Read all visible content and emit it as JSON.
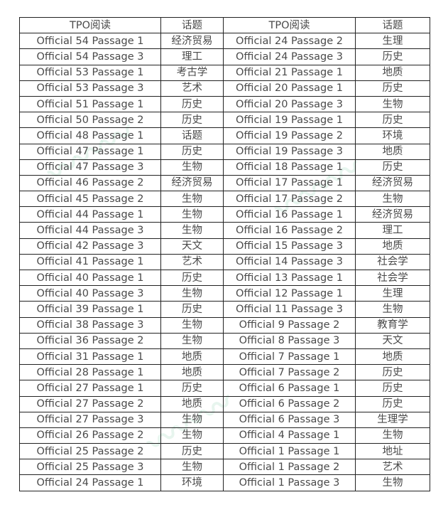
{
  "headers": [
    "TPO阅读",
    "话题",
    "TPO阅读",
    "话题"
  ],
  "rows": [
    [
      "Official 54 Passage 1",
      "经济贸易",
      "Official 24 Passage 2",
      "生理"
    ],
    [
      "Official 54 Passage 3",
      "理工",
      "Official 24 Passage 3",
      "历史"
    ],
    [
      "Official 53 Passage 1",
      "考古学",
      "Official 21 Passage 1",
      "地质"
    ],
    [
      "Official 53 Passage 3",
      "艺术",
      "Official 20 Passage 1",
      "历史"
    ],
    [
      "Official 51 Passage 1",
      "历史",
      "Official 20 Passage 3",
      "生物"
    ],
    [
      "Official 50 Passage 2",
      "历史",
      "Official 19 Passage 1",
      "历史"
    ],
    [
      "Official 48 Passage 1",
      "话题",
      "Official 19 Passage 2",
      "环境"
    ],
    [
      "Official 47 Passage 1",
      "历史",
      "Official 19 Passage 3",
      "地质"
    ],
    [
      "Official 47 Passage 3",
      "生物",
      "Official 18 Passage 1",
      "历史"
    ],
    [
      "Official 46 Passage 2",
      "经济贸易",
      "Official 17 Passage 1",
      "经济贸易"
    ],
    [
      "Official 45 Passage 2",
      "生物",
      "Official 17 Passage 2",
      "生物"
    ],
    [
      "Official 44 Passage 1",
      "生物",
      "Official 16 Passage 1",
      "经济贸易"
    ],
    [
      "Official 44 Passage 3",
      "生物",
      "Official 16 Passage 2",
      "理工"
    ],
    [
      "Official 42 Passage 3",
      "天文",
      "Official 15 Passage 3",
      "地质"
    ],
    [
      "Official 41 Passage 1",
      "艺术",
      "Official 14 Passage 3",
      "社会学"
    ],
    [
      "Official 40 Passage 1",
      "历史",
      "Official 13 Passage 1",
      "社会学"
    ],
    [
      "Official 40 Passage 3",
      "生物",
      "Official 12 Passage 1",
      "生理"
    ],
    [
      "Official 39 Passage 1",
      "历史",
      "Official 11 Passage 3",
      "生物"
    ],
    [
      "Official 38 Passage 3",
      "生物",
      "Official 9 Passage 2",
      "教育学"
    ],
    [
      "Official 36 Passage 2",
      "生物",
      "Official 8 Passage 3",
      "天文"
    ],
    [
      "Official 31 Passage 1",
      "地质",
      "Official 7 Passage 1",
      "地质"
    ],
    [
      "Official 28 Passage 1",
      "地质",
      "Official 7 Passage 2",
      "历史"
    ],
    [
      "Official 27 Passage 1",
      "历史",
      "Official 6 Passage 1",
      "历史"
    ],
    [
      "Official 27 Passage 2",
      "地质",
      "Official 6 Passage 2",
      "历史"
    ],
    [
      "Official 27 Passage 3",
      "生物",
      "Official 6 Passage 3",
      "生理学"
    ],
    [
      "Official 26 Passage 2",
      "生物",
      "Official 4 Passage 1",
      "生物"
    ],
    [
      "Official 25 Passage 2",
      "历史",
      "Official 1 Passage 1",
      "地址"
    ],
    [
      "Official 25 Passage 3",
      "生物",
      "Official 1 Passage 2",
      "艺术"
    ],
    [
      "Official 24 Passage 1",
      "环境",
      "Official 1 Passage 3",
      "生物"
    ]
  ]
}
